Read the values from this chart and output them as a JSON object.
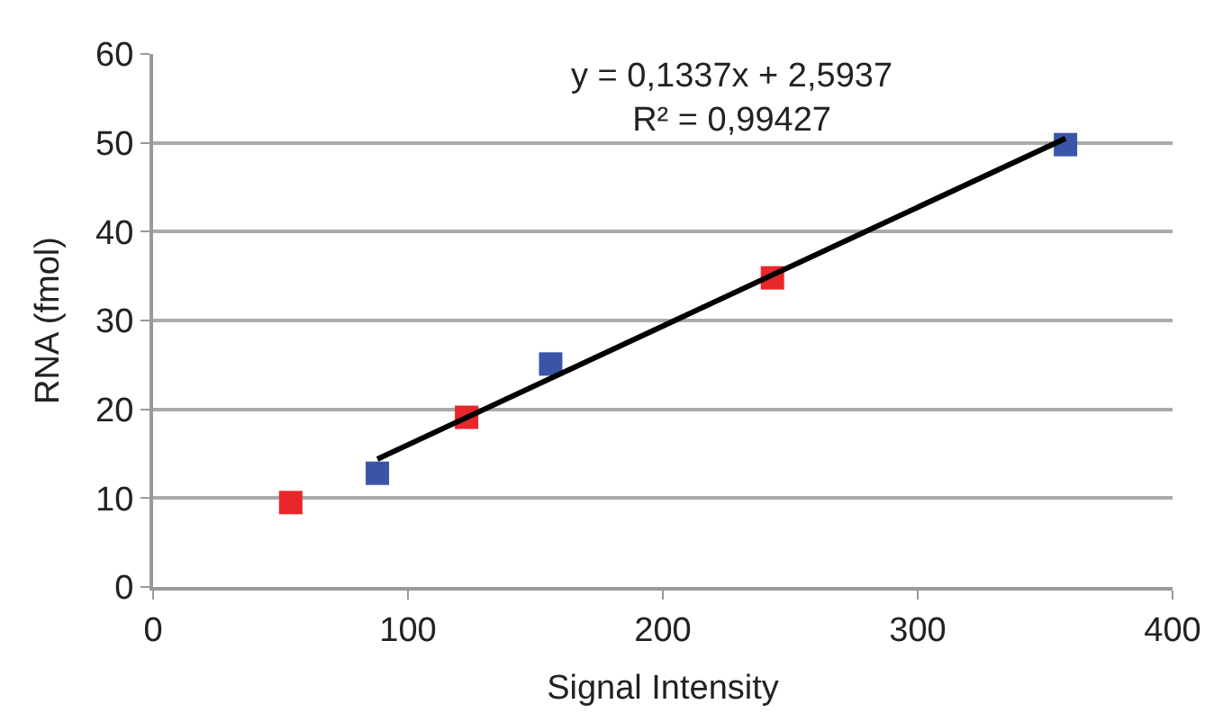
{
  "chart_data": {
    "type": "scatter",
    "xlabel": "Signal Intensity",
    "ylabel": "RNA (fmol)",
    "xlim": [
      0,
      400
    ],
    "xticks": [
      0,
      100,
      200,
      300,
      400
    ],
    "ylim": [
      0,
      60
    ],
    "yticks": [
      0,
      10,
      20,
      30,
      40,
      50,
      60
    ],
    "grid": "y",
    "marker": "square",
    "series": [
      {
        "color": "#e8272a",
        "x": [
          54,
          123,
          243
        ],
        "values": [
          9.5,
          19.1,
          34.8
        ]
      },
      {
        "color": "#3a55a8",
        "x": [
          88,
          156,
          358
        ],
        "values": [
          12.8,
          25.1,
          49.8
        ]
      },
      {
        "type": "line",
        "color": "#000000",
        "x": [
          88,
          358
        ],
        "values": [
          14.4,
          50.5
        ],
        "marker": "none"
      }
    ],
    "annotations": [
      "y = 0,1337x + 2,5937",
      "R² = 0,99427"
    ]
  }
}
